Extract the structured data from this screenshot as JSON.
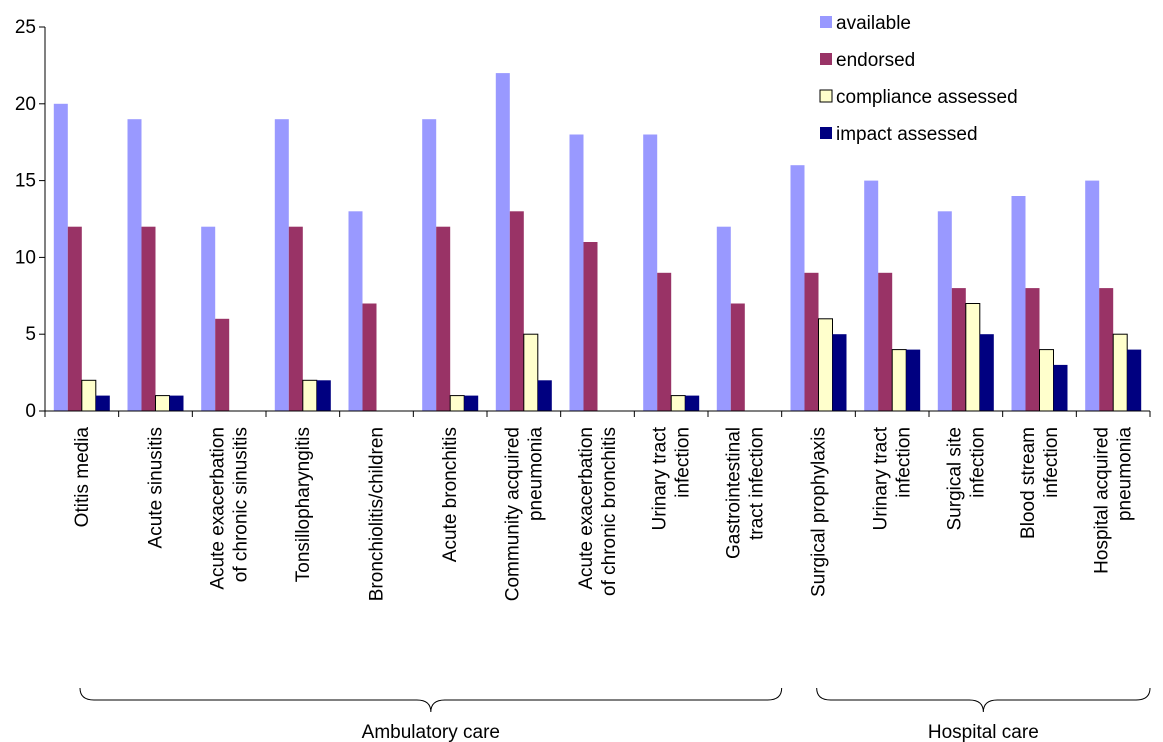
{
  "chart_data": {
    "type": "bar",
    "title": "",
    "xlabel": "",
    "ylabel": "",
    "ylim": [
      0,
      25
    ],
    "yticks": [
      0,
      5,
      10,
      15,
      20,
      25
    ],
    "grid": false,
    "legend_position": "top-right",
    "categories": [
      [
        "Otitis media"
      ],
      [
        "Acute sinusitis"
      ],
      [
        "Acute exacerbation",
        "of chronic sinusitis"
      ],
      [
        "Tonsillopharyngitis"
      ],
      [
        "Bronchiolitis/children"
      ],
      [
        "Acute bronchitis"
      ],
      [
        "Community acquired",
        "pneumonia"
      ],
      [
        "Acute exacerbation",
        "of chronic bronchitis"
      ],
      [
        "Urinary tract",
        "infection"
      ],
      [
        "Gastrointestinal",
        "tract infection"
      ],
      [
        "Surgical prophylaxis"
      ],
      [
        "Urinary tract",
        "infection"
      ],
      [
        "Surgical site",
        "infection"
      ],
      [
        "Blood stream",
        "infection"
      ],
      [
        "Hospital acquired",
        "pneumonia"
      ]
    ],
    "series": [
      {
        "name": "available",
        "color": "#9999ff",
        "values": [
          20,
          19,
          12,
          19,
          13,
          19,
          22,
          18,
          18,
          12,
          16,
          15,
          13,
          14,
          15
        ]
      },
      {
        "name": "endorsed",
        "color": "#993366",
        "values": [
          12,
          12,
          6,
          12,
          7,
          12,
          13,
          11,
          9,
          7,
          9,
          9,
          8,
          8,
          8
        ]
      },
      {
        "name": "compliance assessed",
        "color": "#ffffcc",
        "values": [
          2,
          1,
          0,
          2,
          0,
          1,
          5,
          0,
          1,
          0,
          6,
          4,
          7,
          4,
          5
        ]
      },
      {
        "name": "impact assessed",
        "color": "#000080",
        "values": [
          1,
          1,
          0,
          2,
          0,
          1,
          2,
          0,
          1,
          0,
          5,
          4,
          5,
          3,
          4
        ]
      }
    ],
    "groups": [
      {
        "label": "Ambulatory care",
        "start": 0,
        "end": 9
      },
      {
        "label": "Hospital care",
        "start": 10,
        "end": 14
      }
    ]
  }
}
